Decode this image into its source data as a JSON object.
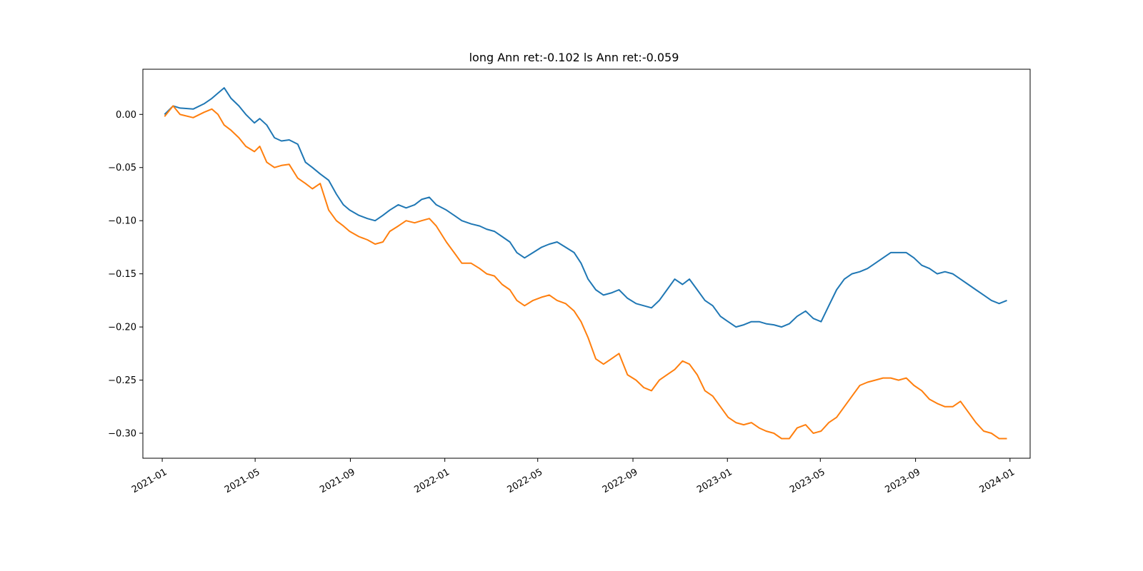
{
  "chart_data": {
    "type": "line",
    "title": "long Ann ret:-0.102  ls Ann ret:-0.059",
    "xlabel": "",
    "ylabel": "",
    "xlim": [
      "2020-12-07",
      "2024-01-27"
    ],
    "ylim": [
      -0.3235,
      0.0425
    ],
    "x_ticks": [
      "2021-01",
      "2021-05",
      "2021-09",
      "2022-01",
      "2022-05",
      "2022-09",
      "2023-01",
      "2023-05",
      "2023-09",
      "2024-01"
    ],
    "y_ticks": [
      0.0,
      -0.05,
      -0.1,
      -0.15,
      -0.2,
      -0.25,
      -0.3
    ],
    "y_tick_labels": [
      "0.00",
      "−0.05",
      "−0.10",
      "−0.15",
      "−0.20",
      "−0.25",
      "−0.30"
    ],
    "grid": false,
    "legend": "none",
    "series": [
      {
        "color": "#1f77b4",
        "x": [
          "2021-01-04",
          "2021-01-15",
          "2021-01-24",
          "2021-02-10",
          "2021-02-24",
          "2021-03-06",
          "2021-03-14",
          "2021-03-22",
          "2021-03-31",
          "2021-04-10",
          "2021-04-19",
          "2021-04-30",
          "2021-05-07",
          "2021-05-16",
          "2021-05-26",
          "2021-06-04",
          "2021-06-14",
          "2021-06-25",
          "2021-07-05",
          "2021-07-14",
          "2021-07-24",
          "2021-08-04",
          "2021-08-14",
          "2021-08-23",
          "2021-08-31",
          "2021-09-12",
          "2021-09-23",
          "2021-10-03",
          "2021-10-13",
          "2021-10-22",
          "2021-11-02",
          "2021-11-12",
          "2021-11-23",
          "2021-12-02",
          "2021-12-12",
          "2021-12-21",
          "2022-01-03",
          "2022-01-13",
          "2022-01-23",
          "2022-02-04",
          "2022-02-15",
          "2022-02-24",
          "2022-03-06",
          "2022-03-16",
          "2022-03-26",
          "2022-04-04",
          "2022-04-14",
          "2022-04-25",
          "2022-05-06",
          "2022-05-16",
          "2022-05-26",
          "2022-06-06",
          "2022-06-17",
          "2022-06-26",
          "2022-07-05",
          "2022-07-15",
          "2022-07-25",
          "2022-08-04",
          "2022-08-14",
          "2022-08-25",
          "2022-09-05",
          "2022-09-15",
          "2022-09-25",
          "2022-10-05",
          "2022-10-15",
          "2022-10-25",
          "2022-11-04",
          "2022-11-13",
          "2022-11-23",
          "2022-12-03",
          "2022-12-13",
          "2022-12-23",
          "2023-01-02",
          "2023-01-12",
          "2023-01-22",
          "2023-02-01",
          "2023-02-11",
          "2023-02-20",
          "2023-03-02",
          "2023-03-12",
          "2023-03-22",
          "2023-04-01",
          "2023-04-12",
          "2023-04-22",
          "2023-05-02",
          "2023-05-12",
          "2023-05-22",
          "2023-06-01",
          "2023-06-11",
          "2023-06-21",
          "2023-07-01",
          "2023-07-11",
          "2023-07-21",
          "2023-07-31",
          "2023-08-10",
          "2023-08-20",
          "2023-08-30",
          "2023-09-09",
          "2023-09-19",
          "2023-09-29",
          "2023-10-09",
          "2023-10-19",
          "2023-10-29",
          "2023-11-08",
          "2023-11-18",
          "2023-11-28",
          "2023-12-08",
          "2023-12-18",
          "2023-12-28"
        ],
        "y": [
          0.0,
          0.008,
          0.006,
          0.005,
          0.01,
          0.015,
          0.02,
          0.025,
          0.015,
          0.008,
          0.0,
          -0.008,
          -0.004,
          -0.01,
          -0.022,
          -0.025,
          -0.024,
          -0.028,
          -0.045,
          -0.05,
          -0.056,
          -0.062,
          -0.075,
          -0.085,
          -0.09,
          -0.095,
          -0.098,
          -0.1,
          -0.095,
          -0.09,
          -0.085,
          -0.088,
          -0.085,
          -0.08,
          -0.078,
          -0.085,
          -0.09,
          -0.095,
          -0.1,
          -0.103,
          -0.105,
          -0.108,
          -0.11,
          -0.115,
          -0.12,
          -0.13,
          -0.135,
          -0.13,
          -0.125,
          -0.122,
          -0.12,
          -0.125,
          -0.13,
          -0.14,
          -0.155,
          -0.165,
          -0.17,
          -0.168,
          -0.165,
          -0.173,
          -0.178,
          -0.18,
          -0.182,
          -0.175,
          -0.165,
          -0.155,
          -0.16,
          -0.155,
          -0.165,
          -0.175,
          -0.18,
          -0.19,
          -0.195,
          -0.2,
          -0.198,
          -0.195,
          -0.195,
          -0.197,
          -0.198,
          -0.2,
          -0.197,
          -0.19,
          -0.185,
          -0.192,
          -0.195,
          -0.18,
          -0.165,
          -0.155,
          -0.15,
          -0.148,
          -0.145,
          -0.14,
          -0.135,
          -0.13,
          -0.13,
          -0.13,
          -0.135,
          -0.142,
          -0.145,
          -0.15,
          -0.148,
          -0.15,
          -0.155,
          -0.16,
          -0.165,
          -0.17,
          -0.175,
          -0.178,
          -0.175
        ]
      },
      {
        "color": "#ff7f0e",
        "x": [
          "2021-01-04",
          "2021-01-15",
          "2021-01-24",
          "2021-02-10",
          "2021-02-24",
          "2021-03-06",
          "2021-03-14",
          "2021-03-22",
          "2021-03-31",
          "2021-04-10",
          "2021-04-19",
          "2021-04-30",
          "2021-05-07",
          "2021-05-16",
          "2021-05-26",
          "2021-06-04",
          "2021-06-14",
          "2021-06-25",
          "2021-07-05",
          "2021-07-14",
          "2021-07-24",
          "2021-08-04",
          "2021-08-14",
          "2021-08-23",
          "2021-08-31",
          "2021-09-12",
          "2021-09-23",
          "2021-10-03",
          "2021-10-13",
          "2021-10-22",
          "2021-11-02",
          "2021-11-12",
          "2021-11-23",
          "2021-12-02",
          "2021-12-12",
          "2021-12-21",
          "2022-01-03",
          "2022-01-13",
          "2022-01-23",
          "2022-02-04",
          "2022-02-15",
          "2022-02-24",
          "2022-03-06",
          "2022-03-16",
          "2022-03-26",
          "2022-04-04",
          "2022-04-14",
          "2022-04-25",
          "2022-05-06",
          "2022-05-16",
          "2022-05-26",
          "2022-06-06",
          "2022-06-17",
          "2022-06-26",
          "2022-07-05",
          "2022-07-15",
          "2022-07-25",
          "2022-08-04",
          "2022-08-14",
          "2022-08-25",
          "2022-09-05",
          "2022-09-15",
          "2022-09-25",
          "2022-10-05",
          "2022-10-15",
          "2022-10-25",
          "2022-11-04",
          "2022-11-13",
          "2022-11-23",
          "2022-12-03",
          "2022-12-13",
          "2022-12-23",
          "2023-01-02",
          "2023-01-12",
          "2023-01-22",
          "2023-02-01",
          "2023-02-11",
          "2023-02-20",
          "2023-03-02",
          "2023-03-12",
          "2023-03-22",
          "2023-04-01",
          "2023-04-12",
          "2023-04-22",
          "2023-05-02",
          "2023-05-12",
          "2023-05-22",
          "2023-06-01",
          "2023-06-11",
          "2023-06-21",
          "2023-07-01",
          "2023-07-11",
          "2023-07-21",
          "2023-07-31",
          "2023-08-10",
          "2023-08-20",
          "2023-08-30",
          "2023-09-09",
          "2023-09-19",
          "2023-09-29",
          "2023-10-09",
          "2023-10-19",
          "2023-10-29",
          "2023-11-08",
          "2023-11-18",
          "2023-11-28",
          "2023-12-08",
          "2023-12-18",
          "2023-12-28"
        ],
        "y": [
          -0.002,
          0.008,
          0.0,
          -0.003,
          0.002,
          0.005,
          0.0,
          -0.01,
          -0.015,
          -0.022,
          -0.03,
          -0.035,
          -0.03,
          -0.045,
          -0.05,
          -0.048,
          -0.047,
          -0.06,
          -0.065,
          -0.07,
          -0.065,
          -0.09,
          -0.1,
          -0.105,
          -0.11,
          -0.115,
          -0.118,
          -0.122,
          -0.12,
          -0.11,
          -0.105,
          -0.1,
          -0.102,
          -0.1,
          -0.098,
          -0.105,
          -0.12,
          -0.13,
          -0.14,
          -0.14,
          -0.145,
          -0.15,
          -0.152,
          -0.16,
          -0.165,
          -0.175,
          -0.18,
          -0.175,
          -0.172,
          -0.17,
          -0.175,
          -0.178,
          -0.185,
          -0.195,
          -0.21,
          -0.23,
          -0.235,
          -0.23,
          -0.225,
          -0.245,
          -0.25,
          -0.257,
          -0.26,
          -0.25,
          -0.245,
          -0.24,
          -0.232,
          -0.235,
          -0.245,
          -0.26,
          -0.265,
          -0.275,
          -0.285,
          -0.29,
          -0.292,
          -0.29,
          -0.295,
          -0.298,
          -0.3,
          -0.305,
          -0.305,
          -0.295,
          -0.292,
          -0.3,
          -0.298,
          -0.29,
          -0.285,
          -0.275,
          -0.265,
          -0.255,
          -0.252,
          -0.25,
          -0.248,
          -0.248,
          -0.25,
          -0.248,
          -0.255,
          -0.26,
          -0.268,
          -0.272,
          -0.275,
          -0.275,
          -0.27,
          -0.28,
          -0.29,
          -0.298,
          -0.3,
          -0.305,
          -0.305
        ]
      }
    ]
  }
}
